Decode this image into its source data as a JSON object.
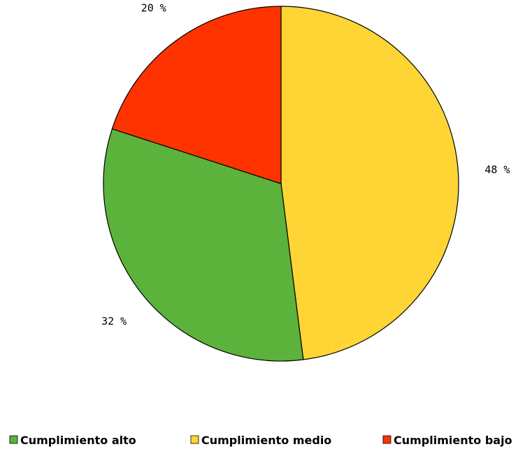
{
  "chart_data": {
    "type": "pie",
    "title": "",
    "slices": [
      {
        "name": "Cumplimiento alto",
        "value": 32,
        "label": "32 %",
        "color": "#5BB33C"
      },
      {
        "name": "Cumplimiento medio",
        "value": 48,
        "label": "48 %",
        "color": "#FFD535"
      },
      {
        "name": "Cumplimiento bajo",
        "value": 20,
        "label": "20 %",
        "color": "#FF3300"
      }
    ],
    "legend": {
      "placement": "bottom",
      "entries": [
        "Cumplimiento alto",
        "Cumplimiento medio",
        "Cumplimiento bajo"
      ]
    },
    "start": "top",
    "direction": "clockwise",
    "slice_order": [
      "Cumplimiento medio",
      "Cumplimiento alto",
      "Cumplimiento bajo"
    ],
    "outline_color": "#000000"
  }
}
